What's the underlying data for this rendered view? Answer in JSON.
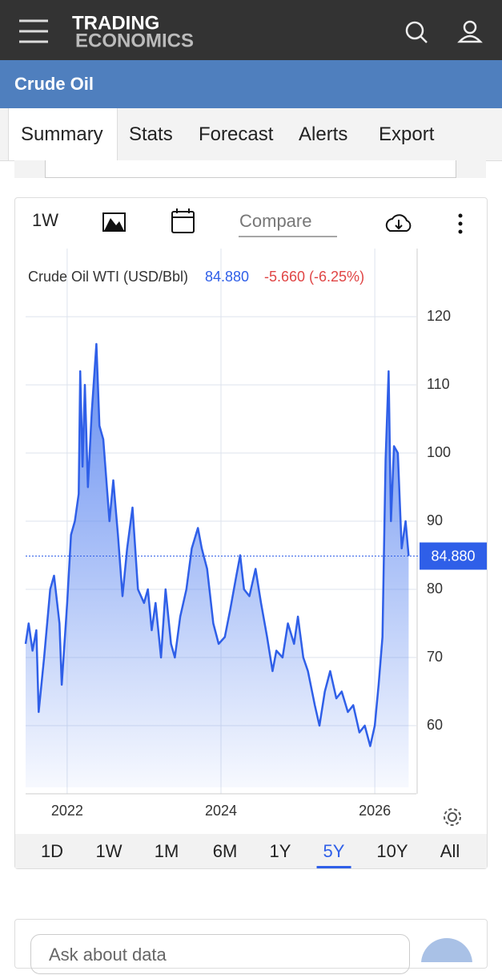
{
  "header": {
    "logo_top": "TRADING",
    "logo_bottom": "ECONOMICS"
  },
  "page_title": "Crude Oil",
  "tabs": [
    "Summary",
    "Stats",
    "Forecast",
    "Alerts",
    "Export"
  ],
  "toolbar": {
    "interval": "1W",
    "compare": "Compare"
  },
  "chart_data": {
    "type": "line",
    "title": "Crude Oil WTI (USD/Bbl)",
    "change": "-5.660 (-6.25%)",
    "reference": {
      "value": 84.88,
      "label": "84.880"
    },
    "color": "#2f5fe8",
    "grid": true,
    "x": [
      2021.46,
      2021.5,
      2021.55,
      2021.6,
      2021.63,
      2021.7,
      2021.78,
      2021.83,
      2021.9,
      2021.93,
      2022.0,
      2022.05,
      2022.1,
      2022.15,
      2022.17,
      2022.2,
      2022.23,
      2022.27,
      2022.32,
      2022.38,
      2022.42,
      2022.47,
      2022.55,
      2022.6,
      2022.66,
      2022.72,
      2022.78,
      2022.85,
      2022.92,
      2023.0,
      2023.05,
      2023.1,
      2023.15,
      2023.22,
      2023.28,
      2023.35,
      2023.4,
      2023.47,
      2023.55,
      2023.62,
      2023.7,
      2023.75,
      2023.82,
      2023.9,
      2023.97,
      2024.05,
      2024.12,
      2024.2,
      2024.25,
      2024.3,
      2024.37,
      2024.45,
      2024.52,
      2024.6,
      2024.67,
      2024.72,
      2024.8,
      2024.87,
      2024.95,
      2025.0,
      2025.07,
      2025.13,
      2025.22,
      2025.28,
      2025.35,
      2025.42,
      2025.5,
      2025.57,
      2025.65,
      2025.72,
      2025.8,
      2025.87,
      2025.94,
      2026.0,
      2026.05,
      2026.1,
      2026.14,
      2026.18,
      2026.21,
      2026.25,
      2026.3,
      2026.35,
      2026.4,
      2026.44
    ],
    "values": [
      72,
      75,
      71,
      74,
      62,
      70,
      80,
      82,
      75,
      66,
      78,
      88,
      90,
      94,
      112,
      98,
      110,
      95,
      106,
      116,
      104,
      102,
      90,
      96,
      88,
      79,
      86,
      92,
      80,
      78,
      80,
      74,
      78,
      70,
      80,
      72,
      70,
      76,
      80,
      86,
      89,
      86,
      83,
      75,
      72,
      73,
      77,
      82,
      85,
      80,
      79,
      83,
      78,
      73,
      68,
      71,
      70,
      75,
      72,
      76,
      70,
      68,
      63,
      60,
      65,
      68,
      64,
      65,
      62,
      63,
      59,
      60,
      57,
      60,
      66,
      73,
      99,
      112,
      90,
      101,
      100,
      86,
      90,
      84.88
    ],
    "xlim": [
      2021.46,
      2026.54
    ],
    "xticks": [
      2022,
      2024,
      2026
    ],
    "ylim": [
      50,
      130
    ],
    "yticks": [
      60,
      70,
      80,
      90,
      100,
      110,
      120
    ]
  },
  "ranges": [
    "1D",
    "1W",
    "1M",
    "6M",
    "1Y",
    "5Y",
    "10Y",
    "All"
  ],
  "selected_range_index": 5,
  "ask": "Ask about data"
}
